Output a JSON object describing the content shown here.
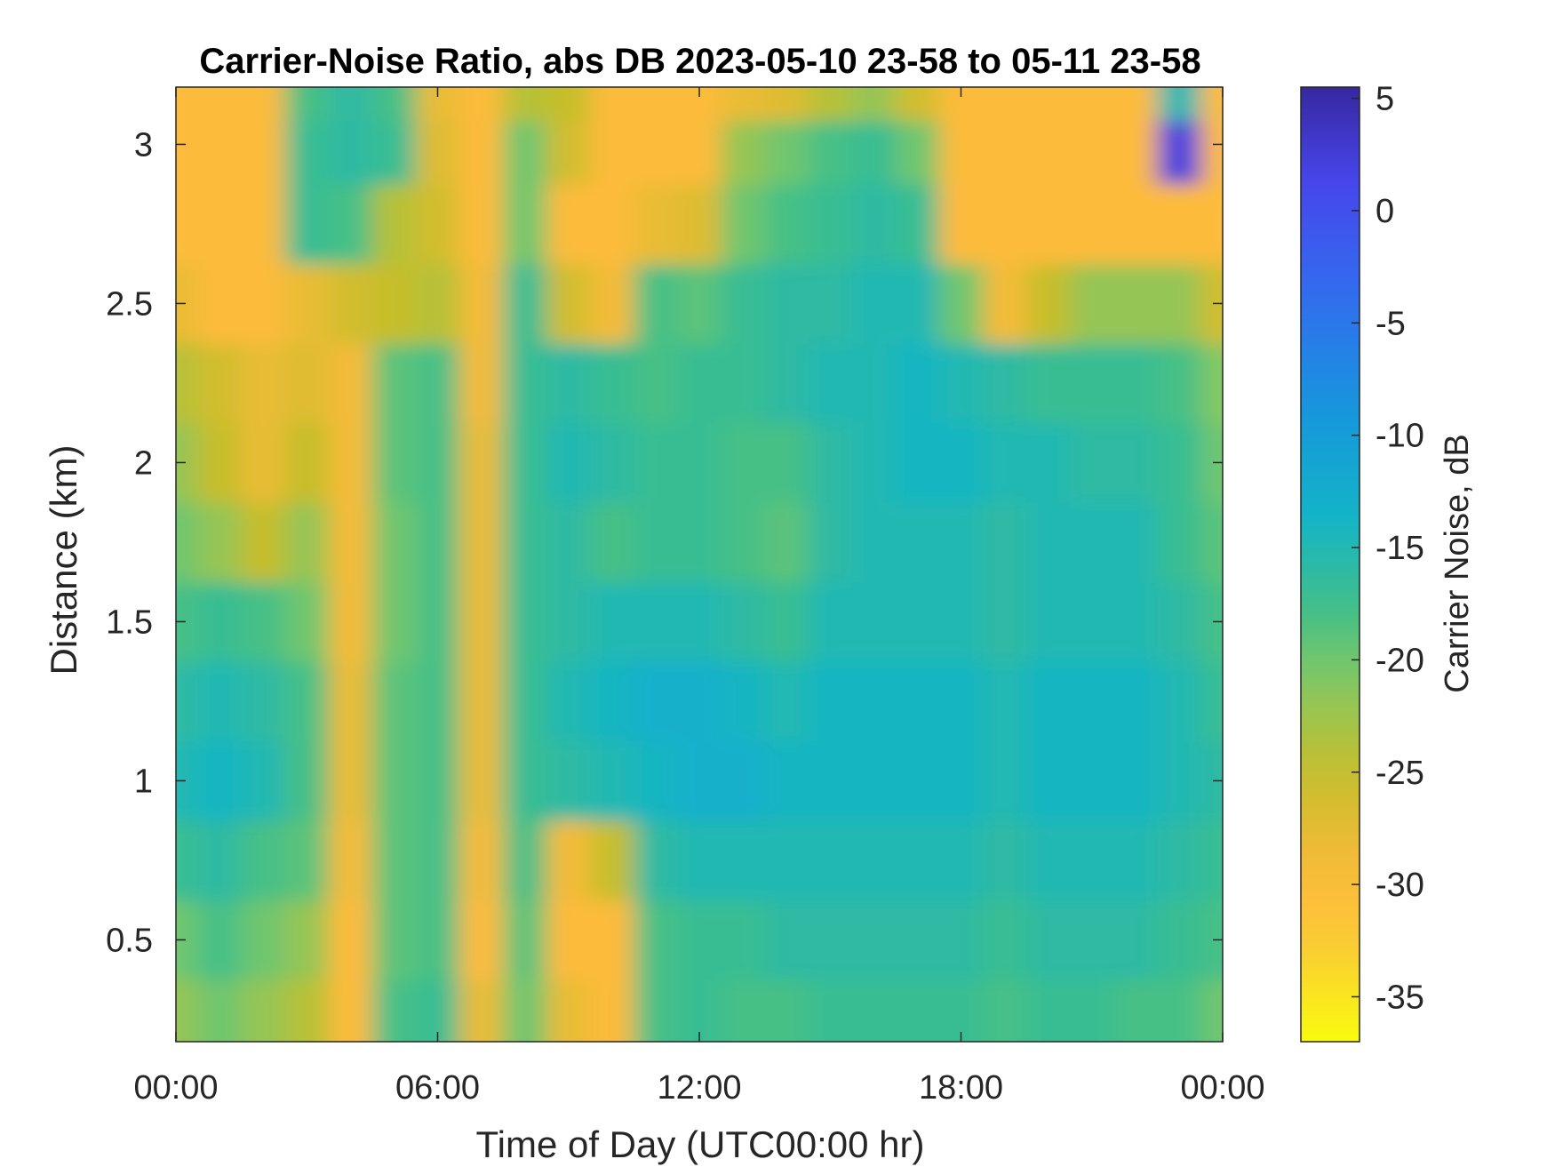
{
  "chart_data": {
    "type": "heatmap",
    "title": "Carrier-Noise Ratio, abs DB 2023-05-10 23-58 to 05-11 23-58",
    "xlabel": "Time of Day (UTC00:00 hr)",
    "ylabel": "Distance (km)",
    "colorbar_label": "Carrier Noise, dB",
    "xlim_hours": [
      0,
      24
    ],
    "ylim_km": [
      0.18,
      3.18
    ],
    "clim_db": [
      -37,
      5.5
    ],
    "colormap": "parula (reversed)",
    "grid": false,
    "x_ticks": [
      {
        "hour": 0,
        "label": "00:00"
      },
      {
        "hour": 6,
        "label": "06:00"
      },
      {
        "hour": 12,
        "label": "12:00"
      },
      {
        "hour": 18,
        "label": "18:00"
      },
      {
        "hour": 24,
        "label": "00:00"
      }
    ],
    "y_ticks": [
      {
        "value": 0.5,
        "label": "0.5"
      },
      {
        "value": 1,
        "label": "1"
      },
      {
        "value": 1.5,
        "label": "1.5"
      },
      {
        "value": 2,
        "label": "2"
      },
      {
        "value": 2.5,
        "label": "2.5"
      },
      {
        "value": 3,
        "label": "3"
      }
    ],
    "colorbar_ticks": [
      {
        "value": 5,
        "label": "5"
      },
      {
        "value": 0,
        "label": "0"
      },
      {
        "value": -5,
        "label": "-5"
      },
      {
        "value": -10,
        "label": "-10"
      },
      {
        "value": -15,
        "label": "-15"
      },
      {
        "value": -20,
        "label": "-20"
      },
      {
        "value": -25,
        "label": "-25"
      },
      {
        "value": -30,
        "label": "-30"
      },
      {
        "value": -35,
        "label": "-35"
      }
    ],
    "x_hours": [
      0,
      1,
      2,
      3,
      4,
      5,
      6,
      7,
      8,
      9,
      10,
      11,
      12,
      13,
      14,
      15,
      16,
      17,
      18,
      19,
      20,
      21,
      22,
      23,
      24
    ],
    "y_km": [
      0.25,
      0.5,
      0.75,
      1.0,
      1.25,
      1.5,
      1.75,
      2.0,
      2.25,
      2.5,
      2.75,
      3.0,
      3.15
    ],
    "z_db": [
      [
        -22,
        -20,
        -22,
        -24,
        -30,
        -18,
        -17,
        -28,
        -20,
        -28,
        -30,
        -18,
        -17,
        -18,
        -18,
        -17,
        -17,
        -17,
        -17,
        -18,
        -17,
        -17,
        -18,
        -18,
        -20
      ],
      [
        -20,
        -18,
        -20,
        -22,
        -30,
        -19,
        -18,
        -30,
        -19,
        -30,
        -30,
        -18,
        -17,
        -17,
        -16,
        -16,
        -16,
        -16,
        -16,
        -17,
        -16,
        -16,
        -16,
        -17,
        -18
      ],
      [
        -17,
        -16,
        -18,
        -19,
        -29,
        -19,
        -18,
        -29,
        -18,
        -29,
        -25,
        -16,
        -15,
        -15,
        -15,
        -15,
        -15,
        -15,
        -15,
        -16,
        -15,
        -15,
        -15,
        -16,
        -17
      ],
      [
        -15,
        -14,
        -15,
        -18,
        -28,
        -19,
        -18,
        -28,
        -17,
        -16,
        -15,
        -14,
        -13,
        -13,
        -14,
        -14,
        -14,
        -14,
        -14,
        -15,
        -14,
        -14,
        -14,
        -15,
        -16
      ],
      [
        -16,
        -15,
        -16,
        -18,
        -28,
        -19,
        -18,
        -28,
        -17,
        -15,
        -14,
        -13,
        -13,
        -14,
        -15,
        -14,
        -14,
        -14,
        -14,
        -15,
        -14,
        -14,
        -14,
        -15,
        -17
      ],
      [
        -18,
        -17,
        -18,
        -20,
        -29,
        -20,
        -18,
        -28,
        -17,
        -16,
        -15,
        -15,
        -15,
        -16,
        -17,
        -15,
        -15,
        -15,
        -15,
        -16,
        -15,
        -15,
        -15,
        -16,
        -18
      ],
      [
        -20,
        -22,
        -25,
        -22,
        -29,
        -20,
        -18,
        -28,
        -17,
        -16,
        -18,
        -17,
        -17,
        -18,
        -19,
        -16,
        -15,
        -15,
        -15,
        -16,
        -15,
        -15,
        -15,
        -17,
        -19
      ],
      [
        -22,
        -25,
        -28,
        -25,
        -29,
        -19,
        -18,
        -28,
        -17,
        -15,
        -16,
        -17,
        -17,
        -18,
        -18,
        -16,
        -15,
        -14,
        -14,
        -15,
        -15,
        -16,
        -16,
        -17,
        -20
      ],
      [
        -24,
        -26,
        -28,
        -27,
        -29,
        -19,
        -18,
        -29,
        -17,
        -16,
        -17,
        -18,
        -17,
        -17,
        -16,
        -15,
        -15,
        -14,
        -15,
        -16,
        -17,
        -17,
        -17,
        -18,
        -21
      ],
      [
        -28,
        -30,
        -30,
        -28,
        -26,
        -25,
        -24,
        -29,
        -17,
        -26,
        -29,
        -18,
        -19,
        -17,
        -16,
        -16,
        -15,
        -15,
        -20,
        -29,
        -25,
        -22,
        -22,
        -22,
        -26
      ],
      [
        -30,
        -30,
        -30,
        -17,
        -18,
        -24,
        -26,
        -30,
        -20,
        -30,
        -30,
        -28,
        -27,
        -20,
        -18,
        -17,
        -16,
        -17,
        -30,
        -30,
        -30,
        -30,
        -30,
        -30,
        -30
      ],
      [
        -30,
        -30,
        -30,
        -17,
        -16,
        -17,
        -27,
        -30,
        -20,
        -26,
        -30,
        -30,
        -30,
        -22,
        -20,
        -18,
        -17,
        -20,
        -30,
        -30,
        -30,
        -30,
        -30,
        2,
        -30
      ],
      [
        -30,
        -30,
        -30,
        -18,
        -16,
        -18,
        -28,
        -30,
        -24,
        -25,
        -30,
        -30,
        -30,
        -28,
        -27,
        -24,
        -22,
        -26,
        -30,
        -30,
        -30,
        -30,
        -30,
        -15,
        -30
      ]
    ]
  }
}
